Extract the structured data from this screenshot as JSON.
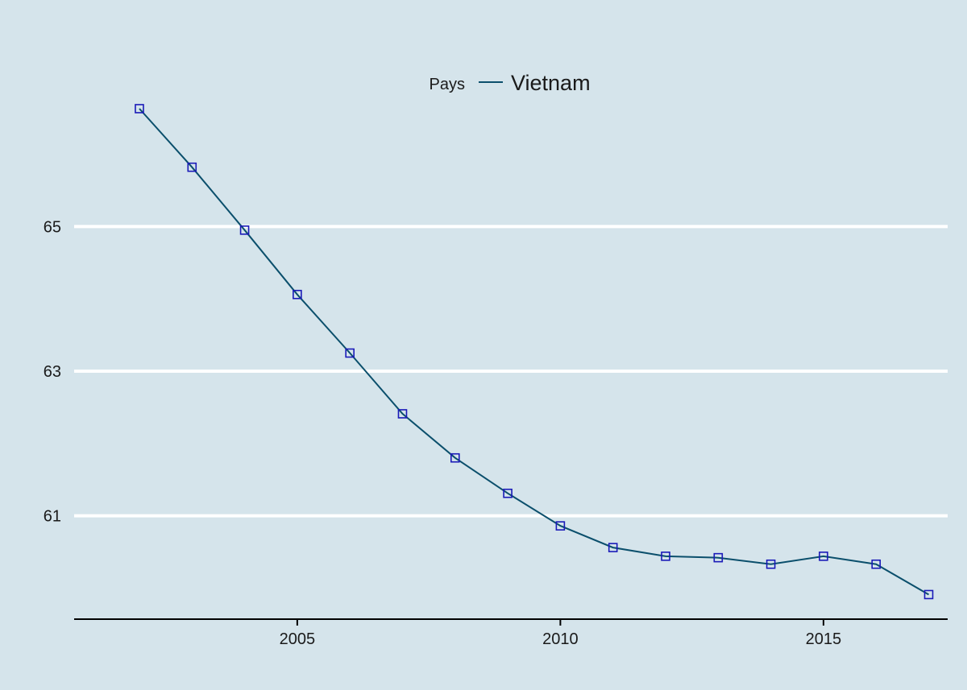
{
  "chart_data": {
    "type": "line",
    "title": "",
    "xlabel": "",
    "ylabel": "",
    "legend": {
      "title": "Pays",
      "placement": "top-center",
      "entries": [
        "Vietnam"
      ]
    },
    "x_ticks": [
      2005,
      2010,
      2015
    ],
    "y_ticks": [
      61,
      63,
      65
    ],
    "xlim": [
      2000.76,
      2017.36
    ],
    "ylim": [
      59.57,
      67.91
    ],
    "grid": "horizontal",
    "colors": {
      "background": "#d5e4eb",
      "line": "#0b4f6c",
      "marker": "#1a1ab8",
      "grid": "#ffffff",
      "axis": "#000000"
    },
    "series": [
      {
        "name": "Vietnam",
        "x": [
          2002,
          2003,
          2004,
          2005,
          2006,
          2007,
          2008,
          2009,
          2010,
          2011,
          2012,
          2013,
          2014,
          2015,
          2016,
          2017
        ],
        "y": [
          66.63,
          65.82,
          64.95,
          64.06,
          63.25,
          62.41,
          61.8,
          61.31,
          60.86,
          60.56,
          60.44,
          60.42,
          60.33,
          60.44,
          60.33,
          59.91
        ]
      }
    ]
  }
}
